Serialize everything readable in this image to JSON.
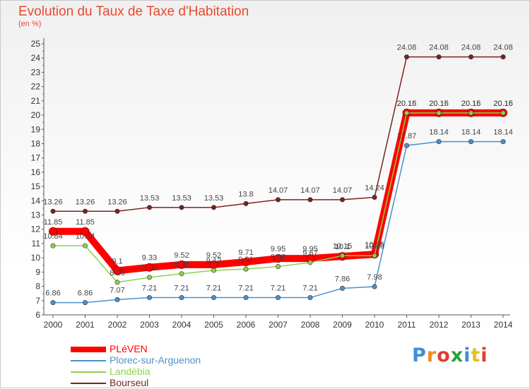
{
  "title": "Evolution du Taux de Taxe d'Habitation",
  "subtitle": "(en %)",
  "logo_text": "Proxiti",
  "chart_data": {
    "type": "line",
    "x": [
      "2000",
      "2001",
      "2002",
      "2003",
      "2004",
      "2005",
      "2006",
      "2007",
      "2008",
      "2009",
      "2010",
      "2011",
      "2012",
      "2013",
      "2014"
    ],
    "ylim": [
      6,
      25
    ],
    "y_ticks": [
      "6",
      "7",
      "8",
      "9",
      "10",
      "11",
      "12",
      "13",
      "14",
      "15",
      "16",
      "17",
      "18",
      "19",
      "20",
      "21",
      "22",
      "23",
      "24",
      "25"
    ],
    "grid": false,
    "legend_position": "bottom-left",
    "series": [
      {
        "name": "PLéVEN",
        "color": "#ff0000",
        "values": [
          11.85,
          11.85,
          9.1,
          9.33,
          9.52,
          9.52,
          9.71,
          9.95,
          9.95,
          10.1,
          10.25,
          20.16,
          20.16,
          20.16,
          20.16
        ],
        "labels": [
          "11.85",
          "11.85",
          "9.1",
          "9.33",
          "9.52",
          "9.52",
          "9.71",
          "9.95",
          "9.95",
          "10.1",
          "10.25",
          "20.16",
          "20.16",
          "20.16",
          "20.16"
        ]
      },
      {
        "name": "Plorec-sur-Arguenon",
        "color": "#4d90c8",
        "values": [
          6.86,
          6.86,
          7.07,
          7.21,
          7.21,
          7.21,
          7.21,
          7.21,
          7.21,
          7.86,
          7.98,
          17.87,
          18.14,
          18.14,
          18.14
        ],
        "labels": [
          "6.86",
          "6.86",
          "7.07",
          "7.21",
          "7.21",
          "7.21",
          "7.21",
          "7.21",
          "7.21",
          "7.86",
          "7.98",
          "17.87",
          "18.14",
          "18.14",
          "18.14"
        ]
      },
      {
        "name": "Landébia",
        "color": "#8fd14f",
        "values": [
          10.84,
          10.84,
          8.28,
          8.63,
          8.88,
          9.12,
          9.21,
          9.39,
          9.67,
          10.15,
          10.15,
          20.15,
          20.15,
          20.15,
          20.15
        ],
        "labels": [
          "10.84",
          "10.84",
          "8.28",
          "8.63",
          "8.88",
          "9.12",
          "9.21",
          "9.39",
          "9.67",
          "10.15",
          "10.15",
          "20.15",
          "20.15",
          "20.15",
          "20.15"
        ]
      },
      {
        "name": "Bourseul",
        "color": "#7a2222",
        "values": [
          13.26,
          13.26,
          13.26,
          13.53,
          13.53,
          13.53,
          13.8,
          14.07,
          14.07,
          14.07,
          14.24,
          24.08,
          24.08,
          24.08,
          24.08
        ],
        "labels": [
          "13.26",
          "13.26",
          "13.26",
          "13.53",
          "13.53",
          "13.53",
          "13.8",
          "14.07",
          "14.07",
          "14.07",
          "14.24",
          "24.08",
          "24.08",
          "24.08",
          "24.08"
        ]
      }
    ]
  }
}
